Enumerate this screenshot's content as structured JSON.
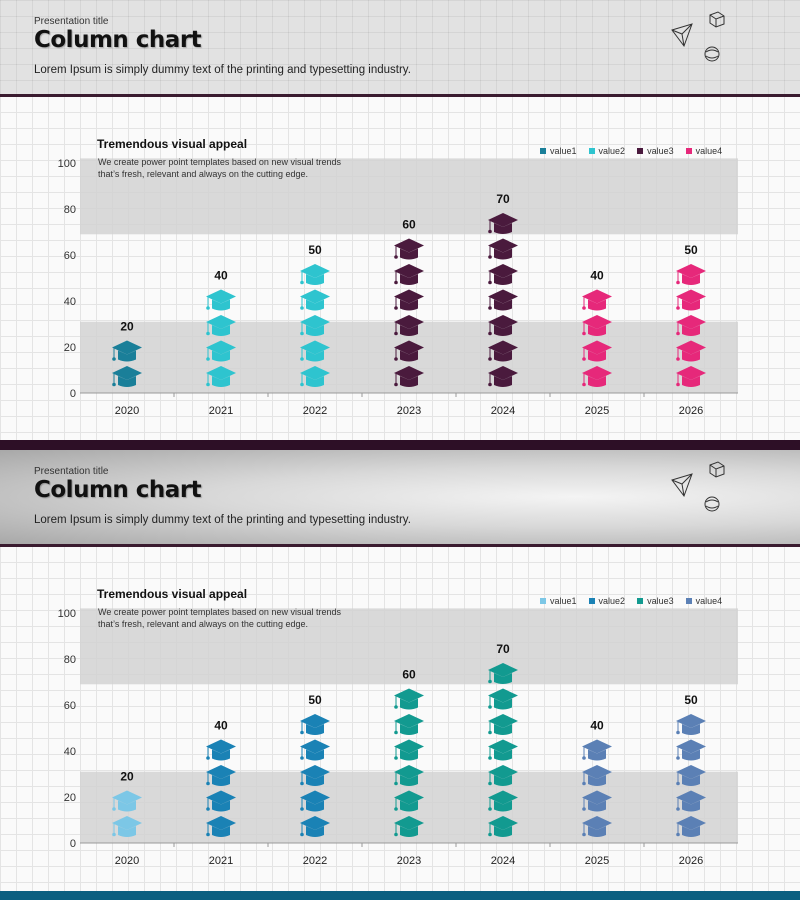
{
  "slides": [
    {
      "presentation_label": "Presentation title",
      "title": "Column chart",
      "subtitle": "Lorem Ipsum is simply dummy text of the printing and typesetting industry.",
      "text_heading": "Tremendous visual appeal",
      "text_body": "We create power point templates based on new visual trends that’s fresh, relevant and always on the cutting edge.",
      "legend": [
        {
          "label": "value1",
          "color": "#1a7f99"
        },
        {
          "label": "value2",
          "color": "#2ec4cf"
        },
        {
          "label": "value3",
          "color": "#4a1a3d"
        },
        {
          "label": "value4",
          "color": "#e6287a"
        }
      ]
    },
    {
      "presentation_label": "Presentation title",
      "title": "Column chart",
      "subtitle": "Lorem Ipsum is simply dummy text of the printing and typesetting industry.",
      "text_heading": "Tremendous visual appeal",
      "text_body": "We create power point templates based on new visual trends that’s fresh, relevant and always on the cutting edge.",
      "legend": [
        {
          "label": "value1",
          "color": "#7cc7e6"
        },
        {
          "label": "value2",
          "color": "#1a82b5"
        },
        {
          "label": "value3",
          "color": "#129a90"
        },
        {
          "label": "value4",
          "color": "#5b80b5"
        }
      ]
    }
  ],
  "chart_data": [
    {
      "type": "bar",
      "categories": [
        "2020",
        "2021",
        "2022",
        "2023",
        "2024",
        "2025",
        "2026"
      ],
      "values": [
        20,
        40,
        50,
        60,
        70,
        40,
        50
      ],
      "bar_colors": [
        "#1a7f99",
        "#2ec4cf",
        "#2ec4cf",
        "#4a1a3d",
        "#4a1a3d",
        "#e6287a",
        "#e6287a"
      ],
      "y_ticks": [
        0,
        20,
        40,
        60,
        80,
        100
      ],
      "ylim": [
        0,
        100
      ]
    },
    {
      "type": "bar",
      "categories": [
        "2020",
        "2021",
        "2022",
        "2023",
        "2024",
        "2025",
        "2026"
      ],
      "values": [
        20,
        40,
        50,
        60,
        70,
        40,
        50
      ],
      "bar_colors": [
        "#7cc7e6",
        "#1a82b5",
        "#1a82b5",
        "#129a90",
        "#129a90",
        "#5b80b5",
        "#5b80b5"
      ],
      "y_ticks": [
        0,
        20,
        40,
        60,
        80,
        100
      ],
      "ylim": [
        0,
        100
      ]
    }
  ]
}
